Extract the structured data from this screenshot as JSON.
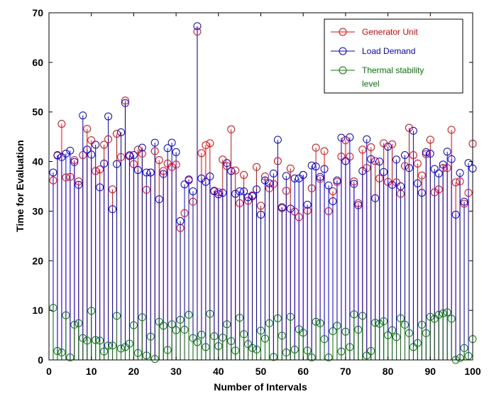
{
  "chart_data": {
    "type": "stem",
    "title": "",
    "xlabel": "Number of Intervals",
    "ylabel": "Time for Evaluation",
    "xlim": [
      0,
      100
    ],
    "ylim": [
      0,
      70
    ],
    "xticks": [
      0,
      10,
      20,
      30,
      40,
      50,
      60,
      70,
      80,
      90,
      100
    ],
    "yticks": [
      0,
      10,
      20,
      30,
      40,
      50,
      60,
      70
    ],
    "grid": false,
    "legend_position": "top-right",
    "x": [
      1,
      2,
      3,
      4,
      5,
      6,
      7,
      8,
      9,
      10,
      11,
      12,
      13,
      14,
      15,
      16,
      17,
      18,
      19,
      20,
      21,
      22,
      23,
      24,
      25,
      26,
      27,
      28,
      29,
      30,
      31,
      32,
      33,
      34,
      35,
      36,
      37,
      38,
      39,
      40,
      41,
      42,
      43,
      44,
      45,
      46,
      47,
      48,
      49,
      50,
      51,
      52,
      53,
      54,
      55,
      56,
      57,
      58,
      59,
      60,
      61,
      62,
      63,
      64,
      65,
      66,
      67,
      68,
      69,
      70,
      71,
      72,
      73,
      74,
      75,
      76,
      77,
      78,
      79,
      80,
      81,
      82,
      83,
      84,
      85,
      86,
      87,
      88,
      89,
      90,
      91,
      92,
      93,
      94,
      95,
      96,
      97,
      98,
      99,
      100
    ],
    "series": [
      {
        "name": "Generator Unit",
        "color": "#ff0000",
        "values": [
          36.2,
          41.2,
          47.6,
          36.8,
          36.9,
          40.3,
          36.0,
          41.3,
          46.6,
          44.3,
          38.1,
          38.4,
          43.4,
          44.5,
          34.4,
          45.6,
          40.9,
          52.3,
          41.3,
          39.5,
          42.4,
          41.6,
          34.3,
          37.8,
          42.1,
          40.3,
          38.1,
          39.6,
          38.9,
          39.4,
          26.6,
          29.6,
          36.2,
          31.9,
          66.2,
          41.7,
          43.3,
          43.7,
          34.0,
          33.8,
          40.4,
          39.1,
          46.5,
          38.2,
          31.6,
          37.3,
          32.1,
          33.2,
          38.9,
          31.1,
          37.0,
          34.6,
          35.5,
          40.1,
          30.6,
          34.1,
          38.6,
          29.9,
          28.8,
          37.3,
          30.1,
          34.6,
          42.8,
          36.5,
          42.1,
          30.0,
          34.0,
          35.9,
          41.0,
          44.3,
          41.0,
          36.0,
          31.6,
          42.4,
          38.7,
          42.9,
          40.1,
          36.6,
          43.7,
          35.9,
          43.5,
          35.8,
          33.5,
          39.1,
          46.8,
          41.3,
          39.6,
          37.2,
          41.5,
          44.4,
          33.8,
          34.4,
          38.7,
          38.7,
          46.4,
          35.8,
          36.0,
          31.5,
          33.7,
          43.6
        ]
      },
      {
        "name": "Load Demand",
        "color": "#0000ff",
        "values": [
          37.8,
          41.3,
          40.9,
          41.6,
          42.2,
          39.9,
          35.3,
          49.3,
          42.4,
          41.4,
          43.4,
          34.8,
          39.6,
          49.1,
          30.4,
          39.5,
          45.9,
          51.8,
          41.1,
          41.3,
          38.3,
          42.8,
          37.8,
          37.8,
          43.8,
          32.4,
          37.5,
          42.7,
          43.8,
          41.9,
          28.0,
          35.4,
          36.4,
          34.0,
          67.3,
          36.6,
          35.9,
          37.0,
          34.1,
          33.4,
          33.7,
          39.7,
          38.1,
          33.5,
          34.0,
          34.0,
          32.8,
          33.0,
          34.4,
          29.3,
          36.2,
          35.6,
          37.6,
          44.4,
          30.8,
          37.1,
          30.5,
          36.6,
          36.6,
          37.3,
          31.3,
          39.2,
          39.0,
          36.9,
          38.5,
          35.2,
          32.0,
          36.2,
          44.8,
          40.1,
          44.9,
          35.5,
          31.2,
          38.1,
          44.5,
          40.5,
          32.6,
          40.0,
          37.9,
          43.0,
          35.3,
          40.4,
          35.0,
          41.3,
          38.7,
          46.2,
          35.6,
          33.7,
          41.9,
          41.6,
          38.5,
          37.6,
          39.4,
          42.0,
          40.5,
          29.3,
          37.7,
          31.9,
          39.7,
          38.6
        ]
      },
      {
        "name": "Thermal stability level",
        "color": "#008000",
        "values": [
          10.5,
          1.8,
          1.5,
          9.0,
          0.5,
          7.1,
          7.4,
          4.4,
          3.9,
          9.9,
          4.0,
          3.9,
          1.7,
          2.9,
          2.9,
          8.9,
          2.3,
          2.6,
          3.3,
          7.0,
          1.4,
          8.6,
          0.9,
          4.7,
          0.2,
          7.7,
          6.9,
          2.0,
          7.2,
          6.0,
          8.1,
          6.1,
          9.1,
          4.4,
          3.6,
          5.1,
          2.6,
          9.3,
          4.8,
          2.8,
          4.5,
          7.2,
          3.8,
          1.9,
          8.5,
          5.2,
          3.2,
          2.4,
          2.1,
          5.9,
          4.3,
          7.4,
          0.6,
          8.4,
          4.9,
          1.5,
          8.7,
          2.1,
          6.2,
          5.5,
          1.9,
          0.5,
          7.7,
          7.4,
          4.2,
          0.5,
          5.8,
          6.9,
          1.7,
          5.7,
          2.6,
          9.2,
          6.1,
          8.9,
          0.9,
          1.8,
          7.5,
          7.3,
          7.8,
          5.0,
          6.0,
          4.6,
          8.4,
          7.1,
          5.4,
          2.6,
          3.4,
          7.1,
          5.4,
          8.7,
          8.3,
          9.1,
          9.4,
          9.6,
          8.3,
          0.0,
          0.4,
          2.4,
          0.8,
          4.2
        ]
      }
    ]
  }
}
